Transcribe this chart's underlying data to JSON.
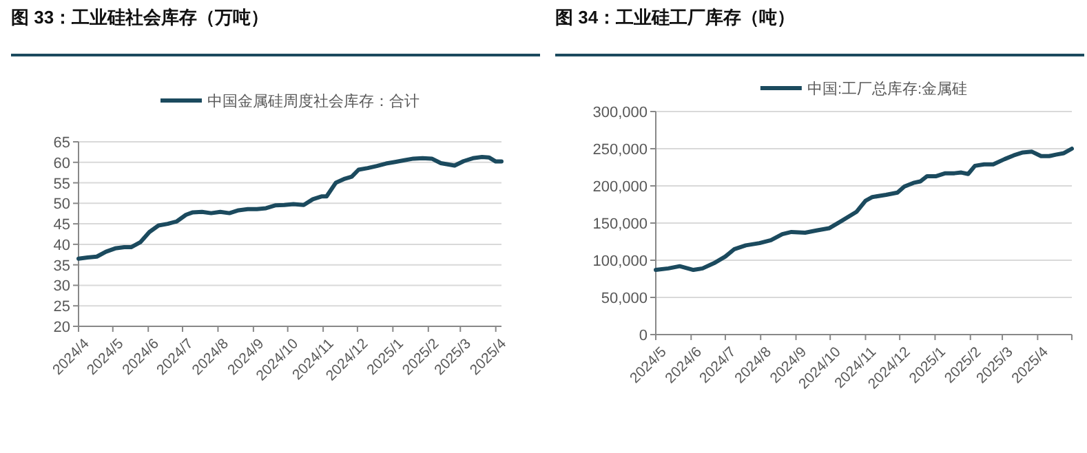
{
  "chart_data": [
    {
      "type": "line",
      "title": "图 33：工业硅社会库存（万吨）",
      "legend": "top",
      "grid": "y",
      "xlim": [
        "2024-04-01",
        "2025-04-06"
      ],
      "xticks": [
        {
          "value": "2024-04-01",
          "label": "2024/4"
        },
        {
          "value": "2024-05-01",
          "label": "2024/5"
        },
        {
          "value": "2024-06-01",
          "label": "2024/6"
        },
        {
          "value": "2024-07-01",
          "label": "2024/7"
        },
        {
          "value": "2024-08-01",
          "label": "2024/8"
        },
        {
          "value": "2024-09-01",
          "label": "2024/9"
        },
        {
          "value": "2024-10-01",
          "label": "2024/10"
        },
        {
          "value": "2024-11-01",
          "label": "2024/11"
        },
        {
          "value": "2024-12-01",
          "label": "2024/12"
        },
        {
          "value": "2025-01-01",
          "label": "2025/1"
        },
        {
          "value": "2025-02-01",
          "label": "2025/2"
        },
        {
          "value": "2025-03-01",
          "label": "2025/3"
        },
        {
          "value": "2025-04-01",
          "label": "2025/4"
        }
      ],
      "ylim": [
        20,
        65
      ],
      "yticks": [
        20,
        25,
        30,
        35,
        40,
        45,
        50,
        55,
        60,
        65
      ],
      "series": [
        {
          "name": "中国金属硅周度社会库存：合计",
          "color": "#1b4a5e",
          "x": [
            "2024-04-01",
            "2024-04-09",
            "2024-04-17",
            "2024-04-25",
            "2024-05-03",
            "2024-05-11",
            "2024-05-17",
            "2024-05-25",
            "2024-06-02",
            "2024-06-10",
            "2024-06-18",
            "2024-06-26",
            "2024-07-04",
            "2024-07-10",
            "2024-07-18",
            "2024-07-26",
            "2024-08-03",
            "2024-08-11",
            "2024-08-19",
            "2024-08-27",
            "2024-09-04",
            "2024-09-12",
            "2024-09-20",
            "2024-09-28",
            "2024-10-06",
            "2024-10-15",
            "2024-10-23",
            "2024-10-31",
            "2024-11-04",
            "2024-11-12",
            "2024-11-20",
            "2024-11-26",
            "2024-12-02",
            "2024-12-10",
            "2024-12-18",
            "2024-12-26",
            "2025-01-03",
            "2025-01-11",
            "2025-01-19",
            "2025-01-27",
            "2025-02-04",
            "2025-02-12",
            "2025-02-24",
            "2025-03-04",
            "2025-03-12",
            "2025-03-20",
            "2025-03-26",
            "2025-04-01",
            "2025-04-06"
          ],
          "values": [
            36.5,
            36.8,
            37,
            38.2,
            39,
            39.3,
            39.3,
            40.5,
            43,
            44.6,
            45,
            45.6,
            47.2,
            47.8,
            47.9,
            47.6,
            47.9,
            47.6,
            48.3,
            48.6,
            48.6,
            48.8,
            49.5,
            49.6,
            49.8,
            49.6,
            51,
            51.7,
            51.7,
            55,
            56,
            56.5,
            58.2,
            58.6,
            59.1,
            59.7,
            60.1,
            60.5,
            60.9,
            61,
            60.9,
            59.8,
            59.2,
            60.3,
            61,
            61.3,
            61.2,
            60.2,
            60.2
          ]
        }
      ]
    },
    {
      "type": "line",
      "title": "图 34：工业硅工厂库存（吨）",
      "legend": "top",
      "grid": "y",
      "xlim": [
        "2024-05-01",
        "2025-05-01"
      ],
      "xticks": [
        {
          "value": "2024-05-01",
          "label": "2024/5"
        },
        {
          "value": "2024-06-01",
          "label": "2024/6"
        },
        {
          "value": "2024-07-01",
          "label": "2024/7"
        },
        {
          "value": "2024-08-01",
          "label": "2024/8"
        },
        {
          "value": "2024-09-01",
          "label": "2024/9"
        },
        {
          "value": "2024-10-01",
          "label": "2024/10"
        },
        {
          "value": "2024-11-01",
          "label": "2024/11"
        },
        {
          "value": "2024-12-01",
          "label": "2024/12"
        },
        {
          "value": "2025-01-01",
          "label": "2025/1"
        },
        {
          "value": "2025-02-01",
          "label": "2025/2"
        },
        {
          "value": "2025-03-01",
          "label": "2025/3"
        },
        {
          "value": "2025-04-01",
          "label": "2025/4"
        },
        {
          "value": "2025-05-01",
          "label": null
        }
      ],
      "ylim": [
        0,
        300000
      ],
      "yticks": [
        0,
        {
          "value": 50000,
          "label": "50,000"
        },
        {
          "value": 100000,
          "label": "100,000"
        },
        {
          "value": 150000,
          "label": "150,000"
        },
        {
          "value": 200000,
          "label": "200,000"
        },
        {
          "value": 250000,
          "label": "250,000"
        },
        {
          "value": 300000,
          "label": "300,000"
        }
      ],
      "series": [
        {
          "name": "中国:工厂总库存:金属硅",
          "color": "#1b4a5e",
          "x": [
            "2024-05-01",
            "2024-05-12",
            "2024-05-22",
            "2024-06-03",
            "2024-06-11",
            "2024-06-21",
            "2024-07-01",
            "2024-07-09",
            "2024-07-19",
            "2024-07-31",
            "2024-08-10",
            "2024-08-20",
            "2024-08-28",
            "2024-09-09",
            "2024-09-19",
            "2024-09-30",
            "2024-10-10",
            "2024-10-24",
            "2024-11-01",
            "2024-11-07",
            "2024-11-19",
            "2024-11-29",
            "2024-12-05",
            "2024-12-13",
            "2024-12-19",
            "2024-12-25",
            "2025-01-02",
            "2025-01-10",
            "2025-01-18",
            "2025-01-24",
            "2025-01-30",
            "2025-02-05",
            "2025-02-13",
            "2025-02-21",
            "2025-03-03",
            "2025-03-11",
            "2025-03-19",
            "2025-03-27",
            "2025-04-04",
            "2025-04-11",
            "2025-04-17",
            "2025-04-24",
            "2025-05-01"
          ],
          "values": [
            87000,
            89000,
            92000,
            87000,
            89000,
            96000,
            105000,
            115000,
            120000,
            123000,
            127000,
            135000,
            138000,
            137000,
            140000,
            143000,
            152000,
            165000,
            180000,
            185000,
            188000,
            191000,
            199000,
            204000,
            206000,
            213000,
            213000,
            217000,
            217000,
            218000,
            216000,
            227000,
            229000,
            229000,
            236000,
            241000,
            245000,
            246000,
            240000,
            240000,
            242000,
            244000,
            250000
          ]
        }
      ]
    }
  ]
}
